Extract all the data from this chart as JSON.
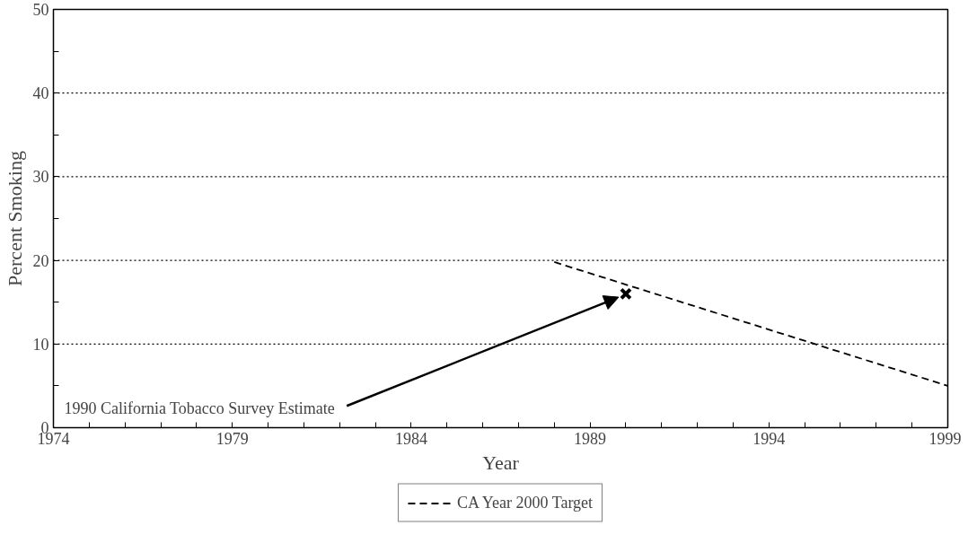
{
  "chart_data": {
    "type": "line",
    "xlabel": "Year",
    "ylabel": "Percent Smoking",
    "series": [
      {
        "name": "CA Year 2000 Target",
        "color": "#000000",
        "line_style": "dashed",
        "marker": "none",
        "x": [
          1988,
          1999
        ],
        "values": [
          19.8,
          5
        ]
      },
      {
        "type": "scatter",
        "color": "#000000",
        "marker": "cross",
        "x": [
          1990
        ],
        "values": [
          16
        ]
      }
    ],
    "annotations": [
      {
        "text": "1990 California Tobacco Survey Estimate",
        "x": 1990,
        "y": 16
      }
    ],
    "xlim": [
      1974,
      1999
    ],
    "ylim": [
      0,
      50
    ],
    "xticks": [
      1974,
      {
        "value": 1975,
        "label": null
      },
      {
        "value": 1976,
        "label": null
      },
      {
        "value": 1977,
        "label": null
      },
      {
        "value": 1978,
        "label": null
      },
      1979,
      {
        "value": 1980,
        "label": null
      },
      {
        "value": 1981,
        "label": null
      },
      {
        "value": 1982,
        "label": null
      },
      {
        "value": 1983,
        "label": null
      },
      1984,
      {
        "value": 1985,
        "label": null
      },
      {
        "value": 1986,
        "label": null
      },
      {
        "value": 1987,
        "label": null
      },
      {
        "value": 1988,
        "label": null
      },
      1989,
      {
        "value": 1990,
        "label": null
      },
      {
        "value": 1991,
        "label": null
      },
      {
        "value": 1992,
        "label": null
      },
      {
        "value": 1993,
        "label": null
      },
      1994,
      {
        "value": 1995,
        "label": null
      },
      {
        "value": 1996,
        "label": null
      },
      {
        "value": 1997,
        "label": null
      },
      {
        "value": 1998,
        "label": null
      },
      1999
    ],
    "yticks": [
      0,
      {
        "value": 5,
        "label": null
      },
      10,
      {
        "value": 15,
        "label": null
      },
      20,
      {
        "value": 25,
        "label": null
      },
      30,
      {
        "value": 35,
        "label": null
      },
      40,
      {
        "value": 45,
        "label": null
      },
      50
    ],
    "grid": "y",
    "legend": "bottom"
  }
}
